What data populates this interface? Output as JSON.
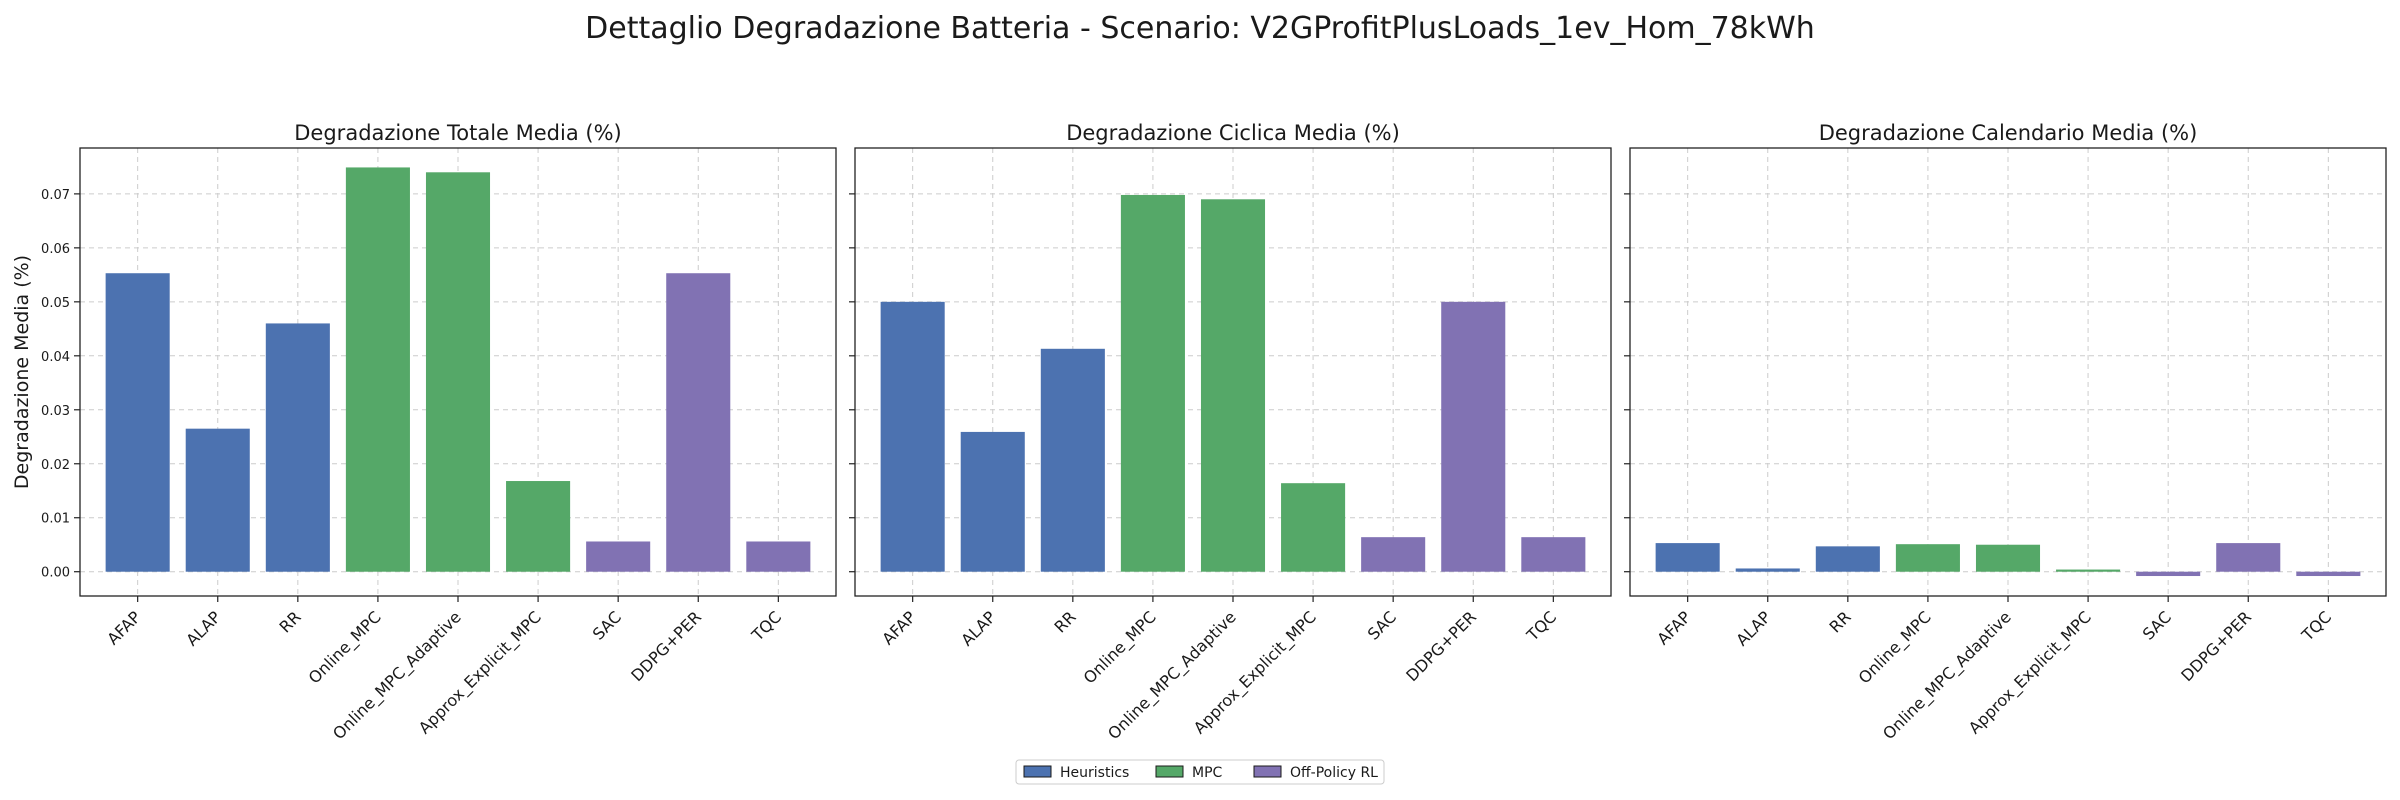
{
  "figure": {
    "suptitle": "Dettaglio Degradazione Batteria - Scenario: V2GProfitPlusLoads_1ev_Hom_78kWh"
  },
  "colors": {
    "Heuristics": "#4c72b0",
    "MPC": "#55a868",
    "Off-Policy RL": "#8172b3"
  },
  "legend": {
    "placement": "bottom-center",
    "entries": [
      "Heuristics",
      "MPC",
      "Off-Policy RL"
    ]
  },
  "chart_data": [
    {
      "type": "bar",
      "title": "Degradazione Totale Media (%)",
      "ylabel": "Degradazione Media (%)",
      "xlabel": "",
      "ylim": [
        -0.0045,
        0.0785
      ],
      "yticks": [
        "0.00",
        "0.01",
        "0.02",
        "0.03",
        "0.04",
        "0.05",
        "0.06",
        "0.07"
      ],
      "grid": true,
      "categories": [
        "AFAP",
        "ALAP",
        "RR",
        "Online_MPC",
        "Online_MPC_Adaptive",
        "Approx_Explicit_MPC",
        "SAC",
        "DDPG+PER",
        "TQC"
      ],
      "groups": [
        "Heuristics",
        "Heuristics",
        "Heuristics",
        "MPC",
        "MPC",
        "MPC",
        "Off-Policy RL",
        "Off-Policy RL",
        "Off-Policy RL"
      ],
      "values": [
        0.0553,
        0.0265,
        0.046,
        0.0749,
        0.074,
        0.0168,
        0.0056,
        0.0553,
        0.0056
      ]
    },
    {
      "type": "bar",
      "title": "Degradazione Ciclica Media (%)",
      "ylabel": "",
      "xlabel": "",
      "ylim": [
        -0.0045,
        0.0785
      ],
      "yticks": [],
      "grid": true,
      "categories": [
        "AFAP",
        "ALAP",
        "RR",
        "Online_MPC",
        "Online_MPC_Adaptive",
        "Approx_Explicit_MPC",
        "SAC",
        "DDPG+PER",
        "TQC"
      ],
      "groups": [
        "Heuristics",
        "Heuristics",
        "Heuristics",
        "MPC",
        "MPC",
        "MPC",
        "Off-Policy RL",
        "Off-Policy RL",
        "Off-Policy RL"
      ],
      "values": [
        0.05,
        0.0259,
        0.0413,
        0.0698,
        0.069,
        0.0164,
        0.0064,
        0.05,
        0.0064
      ]
    },
    {
      "type": "bar",
      "title": "Degradazione Calendario Media (%)",
      "ylabel": "",
      "xlabel": "",
      "ylim": [
        -0.0045,
        0.0785
      ],
      "yticks": [],
      "grid": true,
      "categories": [
        "AFAP",
        "ALAP",
        "RR",
        "Online_MPC",
        "Online_MPC_Adaptive",
        "Approx_Explicit_MPC",
        "SAC",
        "DDPG+PER",
        "TQC"
      ],
      "groups": [
        "Heuristics",
        "Heuristics",
        "Heuristics",
        "MPC",
        "MPC",
        "MPC",
        "Off-Policy RL",
        "Off-Policy RL",
        "Off-Policy RL"
      ],
      "values": [
        0.0053,
        0.0006,
        0.0047,
        0.0051,
        0.005,
        0.0004,
        -0.0008,
        0.0053,
        -0.0008
      ]
    }
  ]
}
